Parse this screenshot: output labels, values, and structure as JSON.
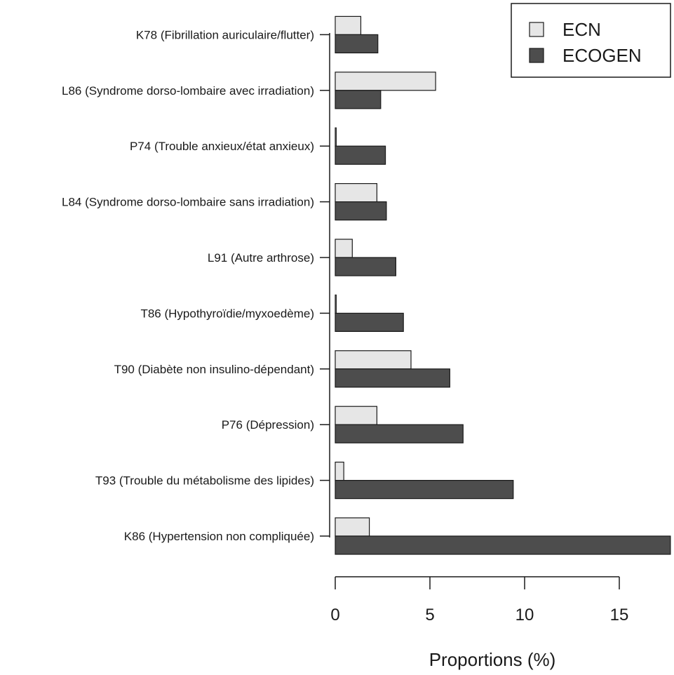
{
  "chart_data": {
    "type": "bar",
    "orientation": "horizontal",
    "categories": [
      "K86 (Hypertension non compliquée)",
      "T93 (Trouble du métabolisme des lipides)",
      "P76 (Dépression)",
      "T90 (Diabète non insulino-dépendant)",
      "T86 (Hypothyroïdie/myxoedème)",
      "L91 (Autre arthrose)",
      "L84 (Syndrome dorso-lombaire sans irradiation)",
      "P74 (Trouble anxieux/état anxieux)",
      "L86 (Syndrome dorso-lombaire avec irradiation)",
      "K78 (Fibrillation auriculaire/flutter)"
    ],
    "series": [
      {
        "name": "ECN",
        "color": "#e6e6e6",
        "values": [
          1.8,
          0.45,
          2.2,
          4.0,
          0.05,
          0.9,
          2.2,
          0.05,
          5.3,
          1.35
        ]
      },
      {
        "name": "ECOGEN",
        "color": "#4d4d4d",
        "values": [
          17.7,
          9.4,
          6.75,
          6.05,
          3.6,
          3.2,
          2.7,
          2.65,
          2.4,
          2.25
        ]
      }
    ],
    "xlabel": "Proportions (%)",
    "ylabel": "",
    "title": "",
    "xticks": [
      0,
      5,
      10,
      15
    ],
    "xlim": [
      0,
      17.7
    ],
    "legend_position": "top-right",
    "grid": false
  }
}
